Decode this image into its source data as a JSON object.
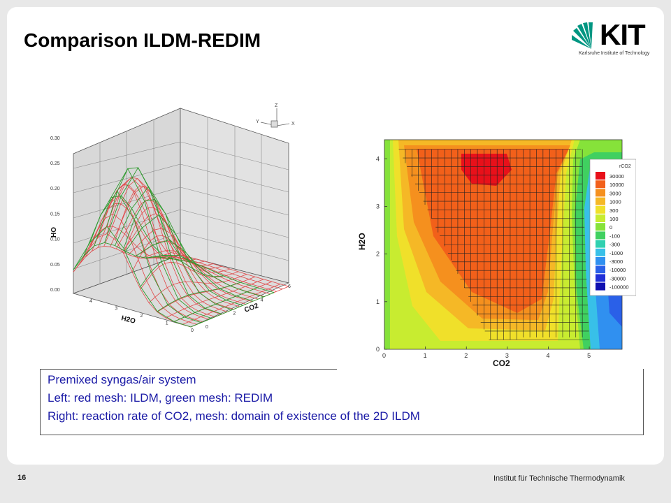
{
  "slide": {
    "title": "Comparison ILDM-REDIM",
    "page_number": "16",
    "institute": "Institut für Technische Thermodynamik",
    "logo": {
      "text": "KIT",
      "subtitle": "Karlsruhe Institute of Technology",
      "accent": "#009682"
    }
  },
  "left_plot": {
    "zlabel": "HO",
    "xlabel": "H2O",
    "ylabel": "CO2",
    "z_ticks": [
      "0.00",
      "0.05",
      "0.10",
      "0.15",
      "0.20",
      "0.25",
      "0.30"
    ],
    "h2o_ticks": [
      "4",
      "3",
      "2",
      "1",
      "0"
    ],
    "co2_ticks": [
      "0",
      "2",
      "4",
      "6"
    ],
    "axes_triad": [
      "Z",
      "Y",
      "X"
    ],
    "ildm_color": "#e04848",
    "redim_color": "#2e9a2e"
  },
  "right_plot": {
    "xlabel": "CO2",
    "ylabel": "H2O",
    "x_ticks": [
      "0",
      "1",
      "2",
      "3",
      "4",
      "5"
    ],
    "y_ticks": [
      "0",
      "1",
      "2",
      "3",
      "4"
    ],
    "legend_title": "rCO2",
    "legend": [
      {
        "label": "30000",
        "color": "#e8101a"
      },
      {
        "label": "10000",
        "color": "#f2601a"
      },
      {
        "label": "3000",
        "color": "#f5901e"
      },
      {
        "label": "1000",
        "color": "#f5b826"
      },
      {
        "label": "300",
        "color": "#f0e02a"
      },
      {
        "label": "100",
        "color": "#c8ec30"
      },
      {
        "label": "0",
        "color": "#86e23a"
      },
      {
        "label": "-100",
        "color": "#40d060"
      },
      {
        "label": "-300",
        "color": "#30d0b0"
      },
      {
        "label": "-1000",
        "color": "#38c0e8"
      },
      {
        "label": "-3000",
        "color": "#3090f0"
      },
      {
        "label": "-10000",
        "color": "#2a60e8"
      },
      {
        "label": "-30000",
        "color": "#2030d8"
      },
      {
        "label": "-100000",
        "color": "#1010b0"
      }
    ]
  },
  "caption": {
    "line1": "Premixed syngas/air system",
    "line2": "Left: red mesh: ILDM, green mesh: REDIM",
    "line3": "Right: reaction rate of CO2, mesh: domain of existence of the 2D ILDM"
  }
}
